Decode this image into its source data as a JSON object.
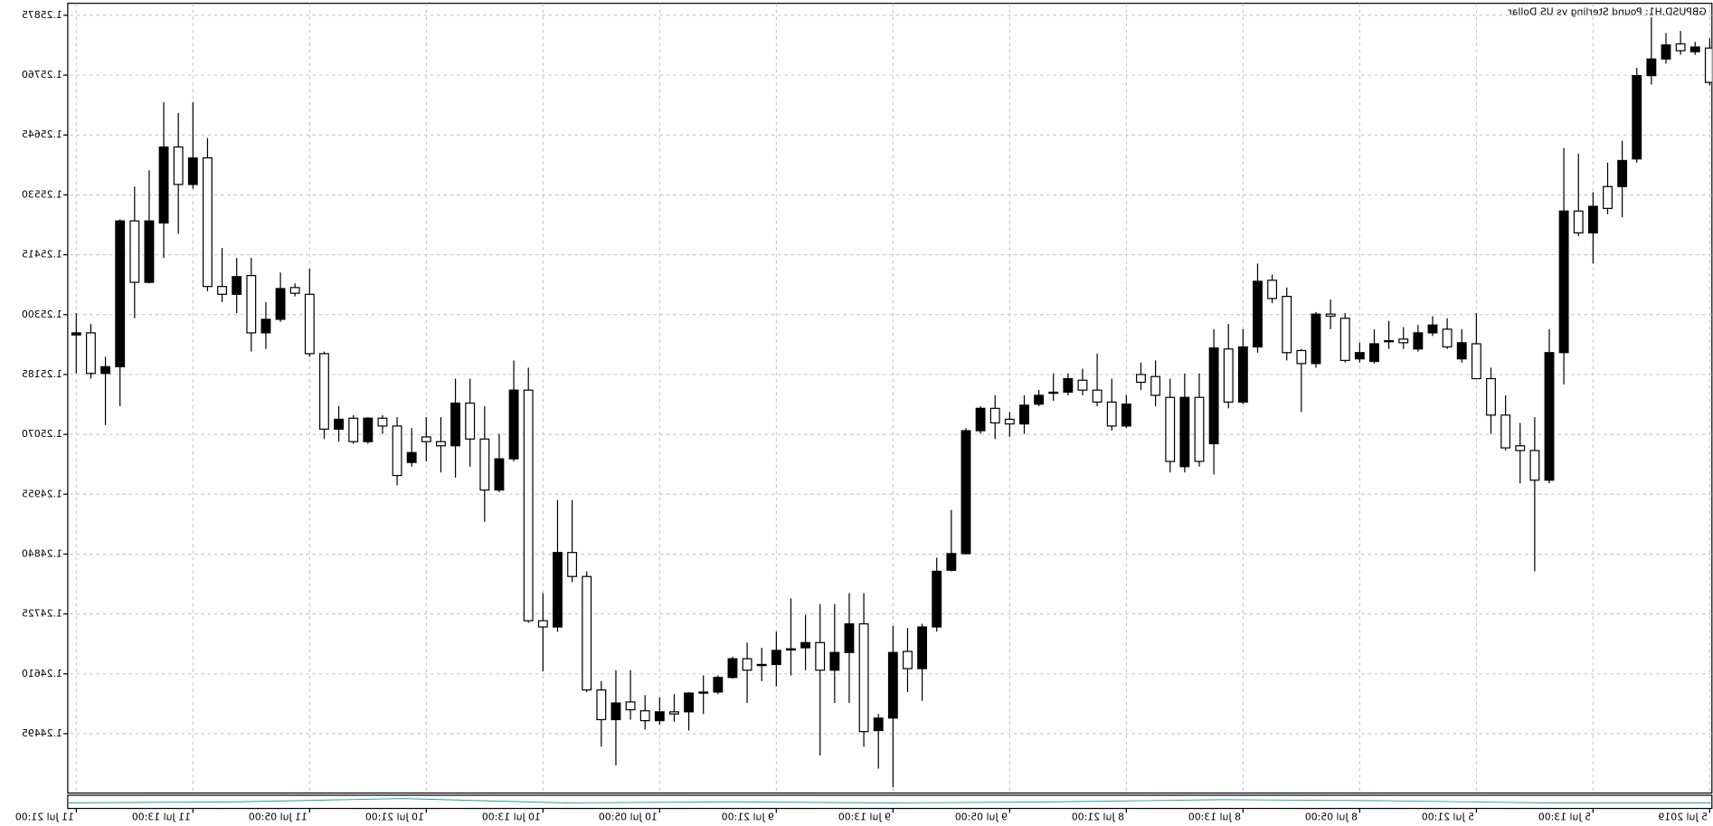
{
  "chart_data": {
    "type": "candlestick",
    "title": "GBPUSD,H1:  Pound Sterling vs US Dollar",
    "categories": [
      "5 Jul 2019",
      null,
      null,
      null,
      null,
      null,
      null,
      null,
      "5 Jul 13:00",
      null,
      null,
      null,
      null,
      null,
      null,
      null,
      "5 Jul 21:00",
      null,
      null,
      null,
      null,
      null,
      null,
      null,
      "8 Jul 05:00",
      null,
      null,
      null,
      null,
      null,
      null,
      null,
      "8 Jul 13:00",
      null,
      null,
      null,
      null,
      null,
      null,
      null,
      "8 Jul 21:00",
      null,
      null,
      null,
      null,
      null,
      null,
      null,
      "9 Jul 05:00",
      null,
      null,
      null,
      null,
      null,
      null,
      null,
      "9 Jul 13:00",
      null,
      null,
      null,
      null,
      null,
      null,
      null,
      "9 Jul 21:00",
      null,
      null,
      null,
      null,
      null,
      null,
      null,
      "10 Jul 05:00",
      null,
      null,
      null,
      null,
      null,
      null,
      null,
      "10 Jul 13:00",
      null,
      null,
      null,
      null,
      null,
      null,
      null,
      "10 Jul 21:00",
      null,
      null,
      null,
      null,
      null,
      null,
      null,
      "11 Jul 05:00",
      null,
      null,
      null,
      null,
      null,
      null,
      null,
      "11 Jul 13:00",
      null,
      null,
      null,
      null,
      null,
      null,
      null,
      "11 Jul 21:00"
    ],
    "open": [
      1.25746,
      1.25814,
      1.25807,
      1.25818,
      1.25791,
      1.25759,
      1.25596,
      1.25504,
      1.25508,
      1.25457,
      1.25499,
      1.25227,
      1.24982,
      1.25039,
      1.25044,
      1.25107,
      1.25177,
      1.25246,
      1.25238,
      1.2528,
      1.25265,
      1.25246,
      1.2525,
      1.25244,
      1.25227,
      1.25212,
      1.25297,
      1.25301,
      1.25206,
      1.25227,
      1.25331,
      1.25364,
      1.25238,
      1.25132,
      1.25236,
      1.25018,
      1.25141,
      1.25018,
      1.25145,
      1.2517,
      1.25128,
      1.25086,
      1.25132,
      1.25155,
      1.25177,
      1.25151,
      1.25145,
      1.25126,
      1.2509,
      1.25092,
      1.2512,
      1.25077,
      1.24841,
      1.24807,
      1.247,
      1.2462,
      1.24651,
      1.24525,
      1.24499,
      1.24706,
      1.24651,
      1.24617,
      1.2467,
      1.24658,
      1.24655,
      1.24626,
      1.24617,
      1.24639,
      1.24603,
      1.24575,
      1.24573,
      1.24533,
      1.24537,
      1.2452,
      1.24541,
      1.24554,
      1.24522,
      1.24579,
      1.24797,
      1.24843,
      1.247,
      1.24712,
      1.25155,
      1.25023,
      1.24963,
      1.25061,
      1.2513,
      1.25048,
      1.25056,
      1.25035,
      1.24991,
      1.25086,
      1.25101,
      1.25056,
      1.25099,
      1.2508,
      1.25225,
      1.25341,
      1.2535,
      1.25291,
      1.25265,
      1.25373,
      1.25339,
      1.25354,
      1.25601,
      1.2555,
      1.25622,
      1.2548,
      1.25362,
      1.2548,
      1.252,
      1.25187,
      1.25265
    ],
    "high": [
      1.25831,
      1.25824,
      1.25845,
      1.25841,
      1.25871,
      1.25774,
      1.25634,
      1.25592,
      1.25535,
      1.25609,
      1.2562,
      1.25272,
      1.25103,
      1.25092,
      1.25145,
      1.25198,
      1.25303,
      1.25272,
      1.25293,
      1.25297,
      1.2528,
      1.25276,
      1.25288,
      1.25272,
      1.25246,
      1.25303,
      1.25329,
      1.25305,
      1.25234,
      1.25352,
      1.25377,
      1.25398,
      1.25272,
      1.25282,
      1.25272,
      1.25187,
      1.25187,
      1.25177,
      1.25212,
      1.25208,
      1.25145,
      1.25177,
      1.25225,
      1.25196,
      1.25187,
      1.25187,
      1.25155,
      1.25145,
      1.25113,
      1.25145,
      1.25124,
      1.25082,
      1.24925,
      1.24833,
      1.24706,
      1.24698,
      1.24702,
      1.24533,
      1.24765,
      1.24765,
      1.24744,
      1.24744,
      1.24723,
      1.24755,
      1.24691,
      1.2466,
      1.2467,
      1.24643,
      1.24607,
      1.24607,
      1.24575,
      1.24571,
      1.24565,
      1.24569,
      1.24617,
      1.24617,
      1.24596,
      1.24807,
      1.24944,
      1.24944,
      1.24765,
      1.25198,
      1.25212,
      1.25071,
      1.25124,
      1.25177,
      1.25177,
      1.25103,
      1.25103,
      1.25082,
      1.25103,
      1.25107,
      1.25103,
      1.25107,
      1.25124,
      1.25229,
      1.25388,
      1.2536,
      1.25381,
      1.25324,
      1.25409,
      1.25409,
      1.25428,
      1.25639,
      1.25708,
      1.25687,
      1.25708,
      1.25577,
      1.25546,
      1.25483,
      1.25219,
      1.25282,
      1.25303
    ],
    "low": [
      1.2574,
      1.25799,
      1.25799,
      1.25782,
      1.25742,
      1.25592,
      1.25487,
      1.25493,
      1.25398,
      1.25451,
      1.25166,
      1.24976,
      1.24807,
      1.24976,
      1.25039,
      1.25071,
      1.25177,
      1.25208,
      1.25234,
      1.25259,
      1.25229,
      1.25234,
      1.25234,
      1.25206,
      1.25208,
      1.25208,
      1.25272,
      1.25198,
      1.25113,
      1.25212,
      1.25322,
      1.25227,
      1.25128,
      1.2512,
      1.24993,
      1.25008,
      1.24997,
      1.24997,
      1.25124,
      1.25155,
      1.25082,
      1.25077,
      1.25124,
      1.25145,
      1.25145,
      1.25134,
      1.25124,
      1.25071,
      1.25065,
      1.25061,
      1.25071,
      1.24839,
      1.24807,
      1.24691,
      1.24558,
      1.24575,
      1.24392,
      1.24428,
      1.2447,
      1.24554,
      1.24554,
      1.24453,
      1.24617,
      1.24607,
      1.24586,
      1.24596,
      1.24554,
      1.24601,
      1.24571,
      1.24533,
      1.24501,
      1.24518,
      1.24512,
      1.24503,
      1.24522,
      1.24434,
      1.2447,
      1.24575,
      1.24786,
      1.24691,
      1.24615,
      1.24708,
      1.25018,
      1.24959,
      1.24902,
      1.25008,
      1.24987,
      1.24997,
      1.25018,
      1.25008,
      1.24972,
      1.25071,
      1.25052,
      1.25052,
      1.25056,
      1.25061,
      1.25219,
      1.25335,
      1.25286,
      1.25234,
      1.25229,
      1.25303,
      1.25324,
      1.25345,
      1.25542,
      1.25455,
      1.25409,
      1.2536,
      1.25293,
      1.25124,
      1.25088,
      1.25177,
      1.25187
    ],
    "close": [
      1.25812,
      1.25805,
      1.2582,
      1.25791,
      1.25759,
      1.25599,
      1.25546,
      1.25546,
      1.25457,
      1.25499,
      1.25227,
      1.24982,
      1.25039,
      1.25048,
      1.25107,
      1.25177,
      1.25244,
      1.25215,
      1.25272,
      1.25265,
      1.25234,
      1.25253,
      1.25248,
      1.2521,
      1.25215,
      1.25293,
      1.25301,
      1.25206,
      1.25231,
      1.25335,
      1.25366,
      1.25238,
      1.25132,
      1.25234,
      1.25052,
      1.25141,
      1.25008,
      1.25141,
      1.25181,
      1.25185,
      1.25086,
      1.25132,
      1.25155,
      1.25174,
      1.25151,
      1.25151,
      1.25128,
      1.2509,
      1.25099,
      1.2512,
      1.25077,
      1.24841,
      1.24809,
      1.247,
      1.2462,
      1.24653,
      1.24525,
      1.24501,
      1.24706,
      1.24651,
      1.24617,
      1.2467,
      1.2466,
      1.24658,
      1.24628,
      1.24628,
      1.24639,
      1.24603,
      1.24575,
      1.24573,
      1.24537,
      1.24537,
      1.2452,
      1.24539,
      1.24556,
      1.24522,
      1.24579,
      1.24797,
      1.24843,
      1.247,
      1.24712,
      1.25155,
      1.25023,
      1.24963,
      1.25061,
      1.2513,
      1.25048,
      1.25056,
      1.25065,
      1.25016,
      1.25086,
      1.25101,
      1.25056,
      1.25101,
      1.2508,
      1.25225,
      1.25339,
      1.25352,
      1.25291,
      1.25265,
      1.25375,
      1.25339,
      1.25354,
      1.25601,
      1.2555,
      1.25622,
      1.25476,
      1.25362,
      1.2548,
      1.252,
      1.25187,
      1.25265,
      1.25261
    ],
    "ylim": [
      1.24381,
      1.25898
    ],
    "yticks": [
      {
        "value": 1.24495,
        "label": "1.24495"
      },
      {
        "value": 1.2461,
        "label": "1.24610"
      },
      {
        "value": 1.24725,
        "label": "1.24725"
      },
      {
        "value": 1.2484,
        "label": "1.24840"
      },
      {
        "value": 1.24955,
        "label": "1.24955"
      },
      {
        "value": 1.2507,
        "label": "1.25070"
      },
      {
        "value": 1.25185,
        "label": "1.25185"
      },
      {
        "value": 1.253,
        "label": "1.25300"
      },
      {
        "value": 1.25415,
        "label": "1.25415"
      },
      {
        "value": 1.2553,
        "label": "1.25530"
      },
      {
        "value": 1.25645,
        "label": "1.25645"
      },
      {
        "value": 1.2576,
        "label": "1.25760"
      },
      {
        "value": 1.25875,
        "label": "1.25875"
      }
    ],
    "bull_color": "#ffffff",
    "bear_color": "#000000",
    "grid": true,
    "mirrored": true
  }
}
